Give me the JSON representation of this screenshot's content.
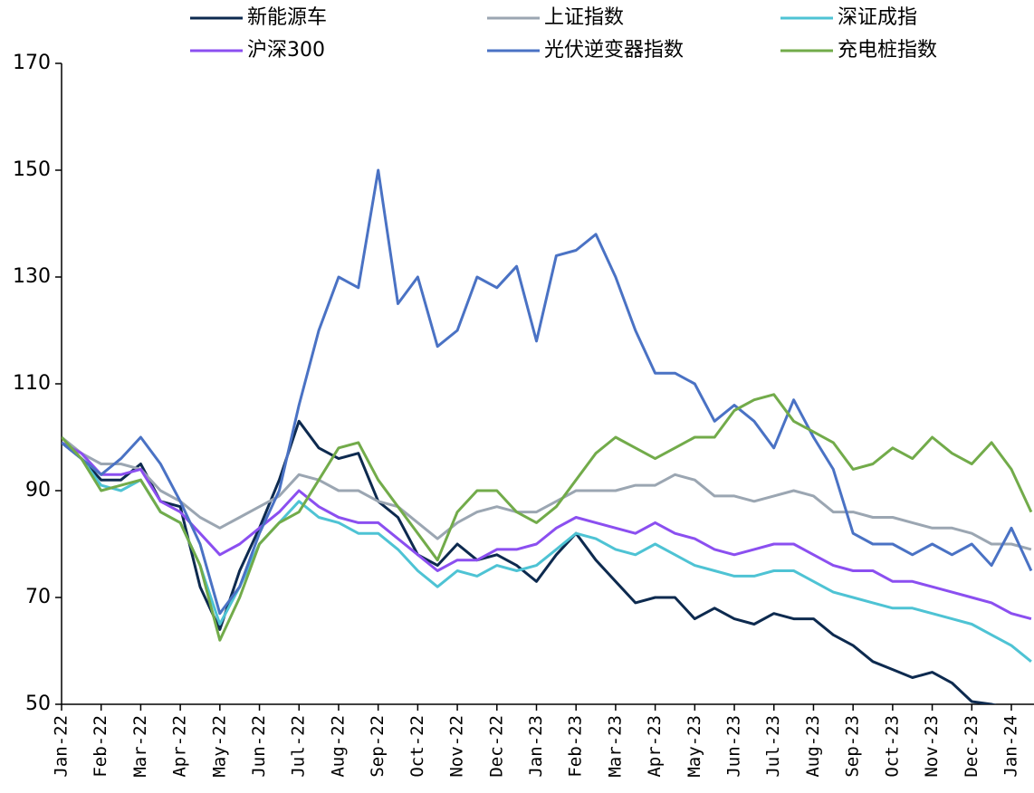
{
  "chart_data": {
    "type": "line",
    "x": [
      0,
      0.5,
      1,
      1.5,
      2,
      2.5,
      3,
      3.5,
      4,
      4.5,
      5,
      5.5,
      6,
      6.5,
      7,
      7.5,
      8,
      8.5,
      9,
      9.5,
      10,
      10.5,
      11,
      11.5,
      12,
      12.5,
      13,
      13.5,
      14,
      14.5,
      15,
      15.5,
      16,
      16.5,
      17,
      17.5,
      18,
      18.5,
      19,
      19.5,
      20,
      20.5,
      21,
      21.5,
      22,
      22.5,
      23,
      23.5,
      24,
      24.5
    ],
    "series": [
      {
        "name": "新能源车",
        "color": "#0d2a4f",
        "values": [
          99,
          96,
          92,
          92,
          95,
          88,
          87,
          72,
          64,
          75,
          83,
          92,
          103,
          98,
          96,
          97,
          88,
          85,
          78,
          76,
          80,
          77,
          78,
          76,
          73,
          78,
          82,
          77,
          73,
          69,
          70,
          70,
          66,
          68,
          66,
          65,
          67,
          66,
          66,
          63,
          61,
          58,
          56.5,
          55,
          56,
          54,
          50.5,
          50,
          49,
          48
        ]
      },
      {
        "name": "上证指数",
        "color": "#9ba6b2",
        "values": [
          100,
          97,
          95,
          95,
          94,
          90,
          88,
          85,
          83,
          85,
          87,
          89,
          93,
          92,
          90,
          90,
          88,
          87,
          84,
          81,
          84,
          86,
          87,
          86,
          86,
          88,
          90,
          90,
          90,
          91,
          91,
          93,
          92,
          89,
          89,
          88,
          89,
          90,
          89,
          86,
          86,
          85,
          85,
          84,
          83,
          83,
          82,
          80,
          80,
          79
        ]
      },
      {
        "name": "深证成指",
        "color": "#4ec3d4",
        "values": [
          99,
          96,
          91,
          90,
          92,
          86,
          84,
          76,
          65,
          72,
          80,
          84,
          88,
          85,
          84,
          82,
          82,
          79,
          75,
          72,
          75,
          74,
          76,
          75,
          76,
          79,
          82,
          81,
          79,
          78,
          80,
          78,
          76,
          75,
          74,
          74,
          75,
          75,
          73,
          71,
          70,
          69,
          68,
          68,
          67,
          66,
          65,
          63,
          61,
          58
        ]
      },
      {
        "name": "沪深300",
        "color": "#8b4ff0",
        "values": [
          99,
          97,
          93,
          93,
          94,
          88,
          86,
          82,
          78,
          80,
          83,
          86,
          90,
          87,
          85,
          84,
          84,
          81,
          78,
          75,
          77,
          77,
          79,
          79,
          80,
          83,
          85,
          84,
          83,
          82,
          84,
          82,
          81,
          79,
          78,
          79,
          80,
          80,
          78,
          76,
          75,
          75,
          73,
          73,
          72,
          71,
          70,
          69,
          67,
          66
        ]
      },
      {
        "name": "光伏逆变器指数",
        "color": "#4a72c4",
        "values": [
          99,
          96,
          93,
          96,
          100,
          95,
          88,
          80,
          67,
          72,
          82,
          90,
          106,
          120,
          130,
          128,
          150,
          125,
          130,
          117,
          120,
          130,
          128,
          132,
          118,
          134,
          135,
          138,
          130,
          120,
          112,
          112,
          110,
          103,
          106,
          103,
          98,
          107,
          100,
          94,
          82,
          80,
          80,
          78,
          80,
          78,
          80,
          76,
          83,
          75
        ]
      },
      {
        "name": "充电桩指数",
        "color": "#72ab4a",
        "values": [
          100,
          96,
          90,
          91,
          92,
          86,
          84,
          76,
          62,
          70,
          80,
          84,
          86,
          92,
          98,
          99,
          92,
          87,
          82,
          77,
          86,
          90,
          90,
          86,
          84,
          87,
          92,
          97,
          100,
          98,
          96,
          98,
          100,
          100,
          105,
          107,
          108,
          103,
          101,
          99,
          94,
          95,
          98,
          96,
          100,
          97,
          95,
          99,
          94,
          86
        ]
      }
    ],
    "xlim": [
      0,
      24.6
    ],
    "xticks": [
      {
        "value": 0,
        "label": "Jan-22"
      },
      {
        "value": 1,
        "label": "Feb-22"
      },
      {
        "value": 2,
        "label": "Mar-22"
      },
      {
        "value": 3,
        "label": "Apr-22"
      },
      {
        "value": 4,
        "label": "May-22"
      },
      {
        "value": 5,
        "label": "Jun-22"
      },
      {
        "value": 6,
        "label": "Jul-22"
      },
      {
        "value": 7,
        "label": "Aug-22"
      },
      {
        "value": 8,
        "label": "Sep-22"
      },
      {
        "value": 9,
        "label": "Oct-22"
      },
      {
        "value": 10,
        "label": "Nov-22"
      },
      {
        "value": 11,
        "label": "Dec-22"
      },
      {
        "value": 12,
        "label": "Jan-23"
      },
      {
        "value": 13,
        "label": "Feb-23"
      },
      {
        "value": 14,
        "label": "Mar-23"
      },
      {
        "value": 15,
        "label": "Apr-23"
      },
      {
        "value": 16,
        "label": "May-23"
      },
      {
        "value": 17,
        "label": "Jun-23"
      },
      {
        "value": 18,
        "label": "Jul-23"
      },
      {
        "value": 19,
        "label": "Aug-23"
      },
      {
        "value": 20,
        "label": "Sep-23"
      },
      {
        "value": 21,
        "label": "Oct-23"
      },
      {
        "value": 22,
        "label": "Nov-23"
      },
      {
        "value": 23,
        "label": "Dec-23"
      },
      {
        "value": 24,
        "label": "Jan-24"
      }
    ],
    "ylim": [
      50,
      170
    ],
    "yticks": [
      50,
      70,
      90,
      110,
      130,
      150,
      170
    ],
    "grid": false
  }
}
